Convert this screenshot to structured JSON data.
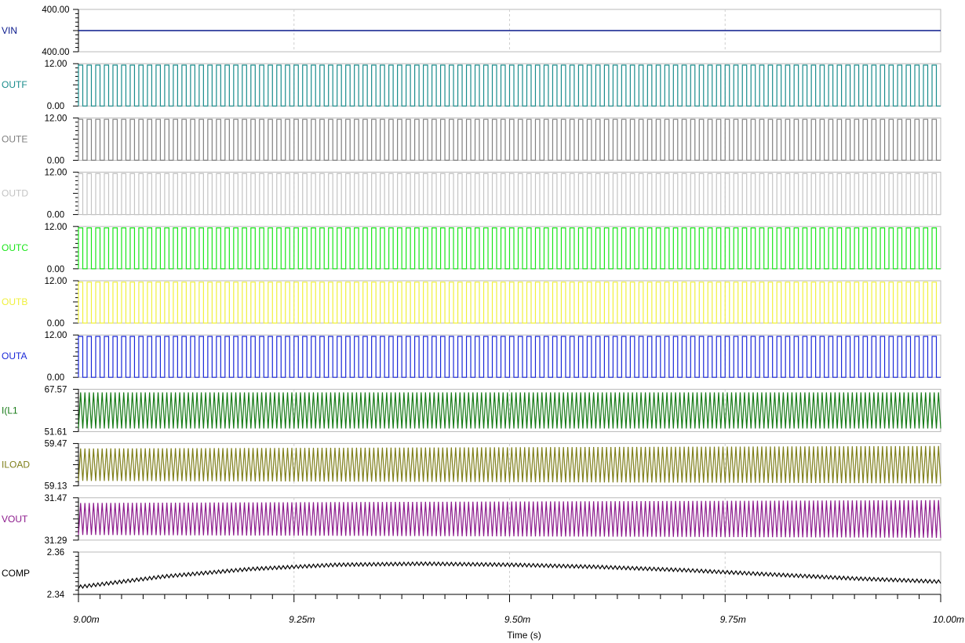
{
  "chart_data": {
    "type": "line",
    "xlabel": "Time (s)",
    "x_range": [
      0.009,
      0.01
    ],
    "x_ticks": [
      "9.00m",
      "9.25m",
      "9.50m",
      "9.75m",
      "10.00m"
    ],
    "grid": true,
    "panels": [
      {
        "name": "VIN",
        "color": "#0a1a8c",
        "ymax_label": "400.00",
        "ymin_label": "400.00",
        "ylim": [
          399.99,
          400.01
        ],
        "kind": "constant",
        "value": 400.0
      },
      {
        "name": "OUTF",
        "color": "#198c8c",
        "ymax_label": "12.00",
        "ymin_label": "0.00",
        "ylim": [
          0,
          12
        ],
        "kind": "square",
        "cycles": 100,
        "duty": 0.5,
        "phase": 0.0,
        "low": 0,
        "high": 11.6
      },
      {
        "name": "OUTE",
        "color": "#808080",
        "ymax_label": "12.00",
        "ymin_label": "0.00",
        "ylim": [
          0,
          12
        ],
        "kind": "square",
        "cycles": 100,
        "duty": 0.5,
        "phase": 0.25,
        "low": 0,
        "high": 11.6
      },
      {
        "name": "OUTD",
        "color": "#c4c4c4",
        "ymax_label": "12.00",
        "ymin_label": "0.00",
        "ylim": [
          0,
          12
        ],
        "kind": "square",
        "cycles": 100,
        "duty": 0.5,
        "phase": 0.5,
        "low": 0,
        "high": 11.6
      },
      {
        "name": "OUTC",
        "color": "#19e619",
        "ymax_label": "12.00",
        "ymin_label": "0.00",
        "ylim": [
          0,
          12
        ],
        "kind": "square",
        "cycles": 100,
        "duty": 0.5,
        "phase": 0.1,
        "low": 0,
        "high": 11.6
      },
      {
        "name": "OUTB",
        "color": "#f0f03c",
        "ymax_label": "12.00",
        "ymin_label": "0.00",
        "ylim": [
          0,
          12
        ],
        "kind": "square",
        "cycles": 100,
        "duty": 0.5,
        "phase": 0.6,
        "low": 0,
        "high": 11.6
      },
      {
        "name": "OUTA",
        "color": "#1a28d8",
        "ymax_label": "12.00",
        "ymin_label": "0.00",
        "ylim": [
          0,
          12
        ],
        "kind": "square",
        "cycles": 100,
        "duty": 0.5,
        "phase": 0.35,
        "low": 0,
        "high": 11.6
      },
      {
        "name": "I(L1",
        "color": "#157a15",
        "ymax_label": "67.57",
        "ymin_label": "51.61",
        "ylim": [
          51.61,
          67.57
        ],
        "kind": "triangle",
        "cycles": 200,
        "mean": 59.59,
        "amp_start": 6.8,
        "amp_end": 6.8
      },
      {
        "name": "ILOAD",
        "color": "#7f7f1a",
        "ymax_label": "59.47",
        "ymin_label": "59.13",
        "ylim": [
          59.13,
          59.47
        ],
        "kind": "triangle",
        "cycles": 200,
        "mean": 59.3,
        "amp_start": 0.13,
        "amp_end": 0.15
      },
      {
        "name": "VOUT",
        "color": "#8c1a8c",
        "ymax_label": "31.47",
        "ymin_label": "31.29",
        "ylim": [
          31.29,
          31.47
        ],
        "kind": "triangle",
        "cycles": 200,
        "mean": 31.38,
        "amp_start": 0.068,
        "amp_end": 0.08
      },
      {
        "name": "COMP",
        "color": "#000000",
        "ymax_label": "2.36",
        "ymin_label": "2.34",
        "ylim": [
          2.34,
          2.36
        ],
        "kind": "comp",
        "cycles": 200,
        "envelope": [
          [
            0.009,
            2.3435
          ],
          [
            0.0091,
            2.3485
          ],
          [
            0.0092,
            2.352
          ],
          [
            0.0093,
            2.354
          ],
          [
            0.0094,
            2.3545
          ],
          [
            0.0095,
            2.354
          ],
          [
            0.0096,
            2.353
          ],
          [
            0.0097,
            2.3515
          ],
          [
            0.0098,
            2.3495
          ],
          [
            0.0099,
            2.3475
          ],
          [
            0.01,
            2.346
          ]
        ],
        "amp": 0.0008
      }
    ]
  }
}
